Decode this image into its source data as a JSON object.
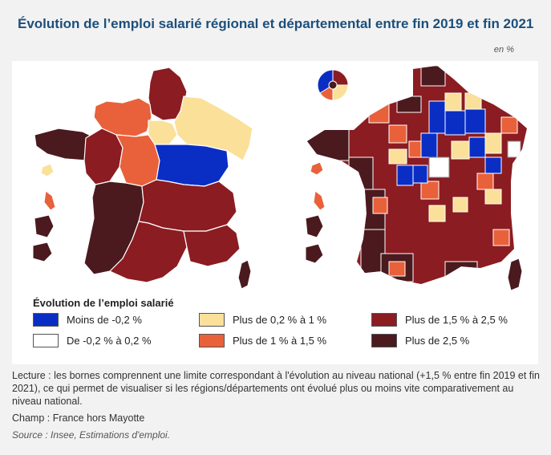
{
  "title": "Évolution de l’emploi salarié régional et départemental entre fin 2019 et fin 2021",
  "unit": "en %",
  "legend": {
    "title": "Évolution de l’emploi salarié",
    "items": [
      {
        "label": "Moins de -0,2 %",
        "color": "#0a2ec4"
      },
      {
        "label": "Plus de 0,2 % à 1 %",
        "color": "#fbe09a"
      },
      {
        "label": "Plus de 1,5 % à 2,5 %",
        "color": "#8b1c22"
      },
      {
        "label": "De -0,2 % à 0,2 %",
        "color": "#ffffff"
      },
      {
        "label": "Plus de 1 % à 1,5 %",
        "color": "#e8613a"
      },
      {
        "label": "Plus de 2,5 %",
        "color": "#4a1a1e"
      }
    ]
  },
  "notes": {
    "lecture": "Lecture : les bornes comprennent une limite correspondant à l'évolution au niveau national (+1,5 % entre fin 2019 et fin 2021), ce qui permet de visualiser si les régions/départements ont évolué plus ou moins vite comparativement au niveau national.",
    "champ": "Champ : France hors Mayotte",
    "source": "Source : Insee, Estimations d'emploi."
  },
  "regions": [
    {
      "name": "Hauts-de-France",
      "class": "Plus de 1,5 % à 2,5 %"
    },
    {
      "name": "Normandie",
      "class": "Plus de 1 % à 1,5 %"
    },
    {
      "name": "Île-de-France",
      "class": "Plus de 0,2 % à 1 %"
    },
    {
      "name": "Grand Est",
      "class": "Plus de 0,2 % à 1 %"
    },
    {
      "name": "Bretagne",
      "class": "Plus de 2,5 %"
    },
    {
      "name": "Pays de la Loire",
      "class": "Plus de 1,5 % à 2,5 %"
    },
    {
      "name": "Centre-Val de Loire",
      "class": "Plus de 1 % à 1,5 %"
    },
    {
      "name": "Bourgogne-Franche-Comté",
      "class": "Moins de -0,2 %"
    },
    {
      "name": "Nouvelle-Aquitaine",
      "class": "Plus de 2,5 %"
    },
    {
      "name": "Auvergne-Rhône-Alpes",
      "class": "Plus de 1,5 % à 2,5 %"
    },
    {
      "name": "Occitanie",
      "class": "Plus de 1,5 % à 2,5 %"
    },
    {
      "name": "Provence-Alpes-Côte d'Azur",
      "class": "Plus de 1,5 % à 2,5 %"
    },
    {
      "name": "Corse",
      "class": "Plus de 2,5 %"
    },
    {
      "name": "Guadeloupe",
      "class": "Plus de 0,2 % à 1 %"
    },
    {
      "name": "Martinique",
      "class": "Plus de 1 % à 1,5 %"
    },
    {
      "name": "Guyane",
      "class": "Plus de 2,5 %"
    },
    {
      "name": "La Réunion",
      "class": "Plus de 2,5 %"
    }
  ]
}
